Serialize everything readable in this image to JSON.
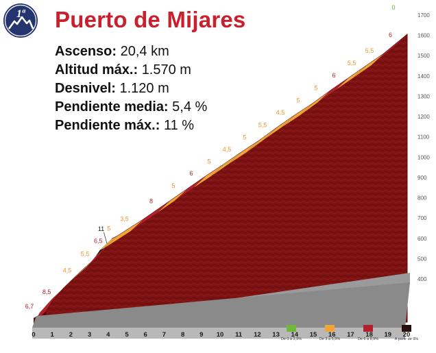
{
  "badge": {
    "text": "1ª",
    "color": "#24346e",
    "icon": "mountain-icon"
  },
  "title": "Puerto de Mijares",
  "stats": [
    {
      "label": "Ascenso:",
      "value": "20,4 km"
    },
    {
      "label": "Altitud máx.:",
      "value": "1.570 m"
    },
    {
      "label": "Desnivel:",
      "value": "1.120 m"
    },
    {
      "label": "Pendiente media:",
      "value": "5,4 %"
    },
    {
      "label": "Pendiente máx.:",
      "value": "11 %"
    }
  ],
  "chart_data": {
    "type": "area",
    "x_km": [
      0,
      1,
      2,
      3,
      4,
      5,
      6,
      7,
      8,
      9,
      10,
      11,
      12,
      13,
      14,
      15,
      16,
      17,
      18,
      19,
      20
    ],
    "x_tick_labels": [
      "0",
      "1",
      "2",
      "3",
      "4",
      "5",
      "6",
      "7",
      "8",
      "9",
      "10",
      "11",
      "12",
      "13",
      "14",
      "15",
      "16",
      "17",
      "18",
      "19",
      "20"
    ],
    "y_ticks": [
      400,
      500,
      600,
      700,
      800,
      900,
      1000,
      1100,
      1200,
      1300,
      1400,
      1500,
      1600,
      1700
    ],
    "ylim": [
      400,
      1700
    ],
    "segments": [
      {
        "from_km": 0,
        "to_km": 0.35,
        "gradient_label": "6,7",
        "category": "red"
      },
      {
        "from_km": 0.35,
        "to_km": 1,
        "gradient_label": "8,5",
        "category": "red"
      },
      {
        "from_km": 1,
        "to_km": 2,
        "gradient_label": "4,5",
        "category": "orange"
      },
      {
        "from_km": 2,
        "to_km": 3,
        "gradient_label": "5,5",
        "category": "orange"
      },
      {
        "from_km": 3,
        "to_km": 3.5,
        "gradient_label": "6,5",
        "category": "red"
      },
      {
        "from_km": 3.5,
        "to_km": 3.75,
        "gradient_label": "11",
        "category": "black"
      },
      {
        "from_km": 3.75,
        "to_km": 4,
        "gradient_label": "5",
        "category": "orange"
      },
      {
        "from_km": 4,
        "to_km": 5.5,
        "gradient_label": "3,5",
        "category": "orange"
      },
      {
        "from_km": 5.5,
        "to_km": 7,
        "gradient_label": "8",
        "category": "red"
      },
      {
        "from_km": 7,
        "to_km": 8,
        "gradient_label": "5",
        "category": "orange"
      },
      {
        "from_km": 8,
        "to_km": 9,
        "gradient_label": "6",
        "category": "red"
      },
      {
        "from_km": 9,
        "to_km": 10,
        "gradient_label": "5",
        "category": "orange"
      },
      {
        "from_km": 10,
        "to_km": 11,
        "gradient_label": "4,5",
        "category": "orange"
      },
      {
        "from_km": 11,
        "to_km": 12,
        "gradient_label": "5",
        "category": "orange"
      },
      {
        "from_km": 12,
        "to_km": 13,
        "gradient_label": "5,5",
        "category": "orange"
      },
      {
        "from_km": 13,
        "to_km": 14,
        "gradient_label": "4,5",
        "category": "orange"
      },
      {
        "from_km": 14,
        "to_km": 15,
        "gradient_label": "5",
        "category": "orange"
      },
      {
        "from_km": 15,
        "to_km": 16,
        "gradient_label": "5",
        "category": "orange"
      },
      {
        "from_km": 16,
        "to_km": 17,
        "gradient_label": "6",
        "category": "red"
      },
      {
        "from_km": 17,
        "to_km": 18,
        "gradient_label": "5,5",
        "category": "orange"
      },
      {
        "from_km": 18,
        "to_km": 19,
        "gradient_label": "5,5",
        "category": "orange"
      },
      {
        "from_km": 19,
        "to_km": 20.4,
        "gradient_label": "6",
        "category": "red"
      },
      {
        "from_km": 20.4,
        "to_km": 20.4,
        "gradient_label": "0",
        "category": "green"
      }
    ],
    "legend": [
      {
        "label": "De 0 a 2,9%",
        "category": "green",
        "color": "#6fb83b"
      },
      {
        "label": "De 3 a 5,9%",
        "category": "orange",
        "color": "#f0a53a"
      },
      {
        "label": "De 6 a 8,9%",
        "category": "red",
        "color": "#b3202d"
      },
      {
        "label": "A partir de 9%",
        "category": "black",
        "color": "#2a0e0e"
      }
    ],
    "legend_position": "bottom-right",
    "colors": {
      "orange": "#f0a53a",
      "red": "#b3202d",
      "black": "#2a0e0e",
      "green": "#6fb83b",
      "fill": "#7e1212",
      "label_orange": "#e8962a",
      "label_red": "#b3202d",
      "label_black": "#1a1a1a",
      "label_green": "#5fae2a"
    }
  }
}
